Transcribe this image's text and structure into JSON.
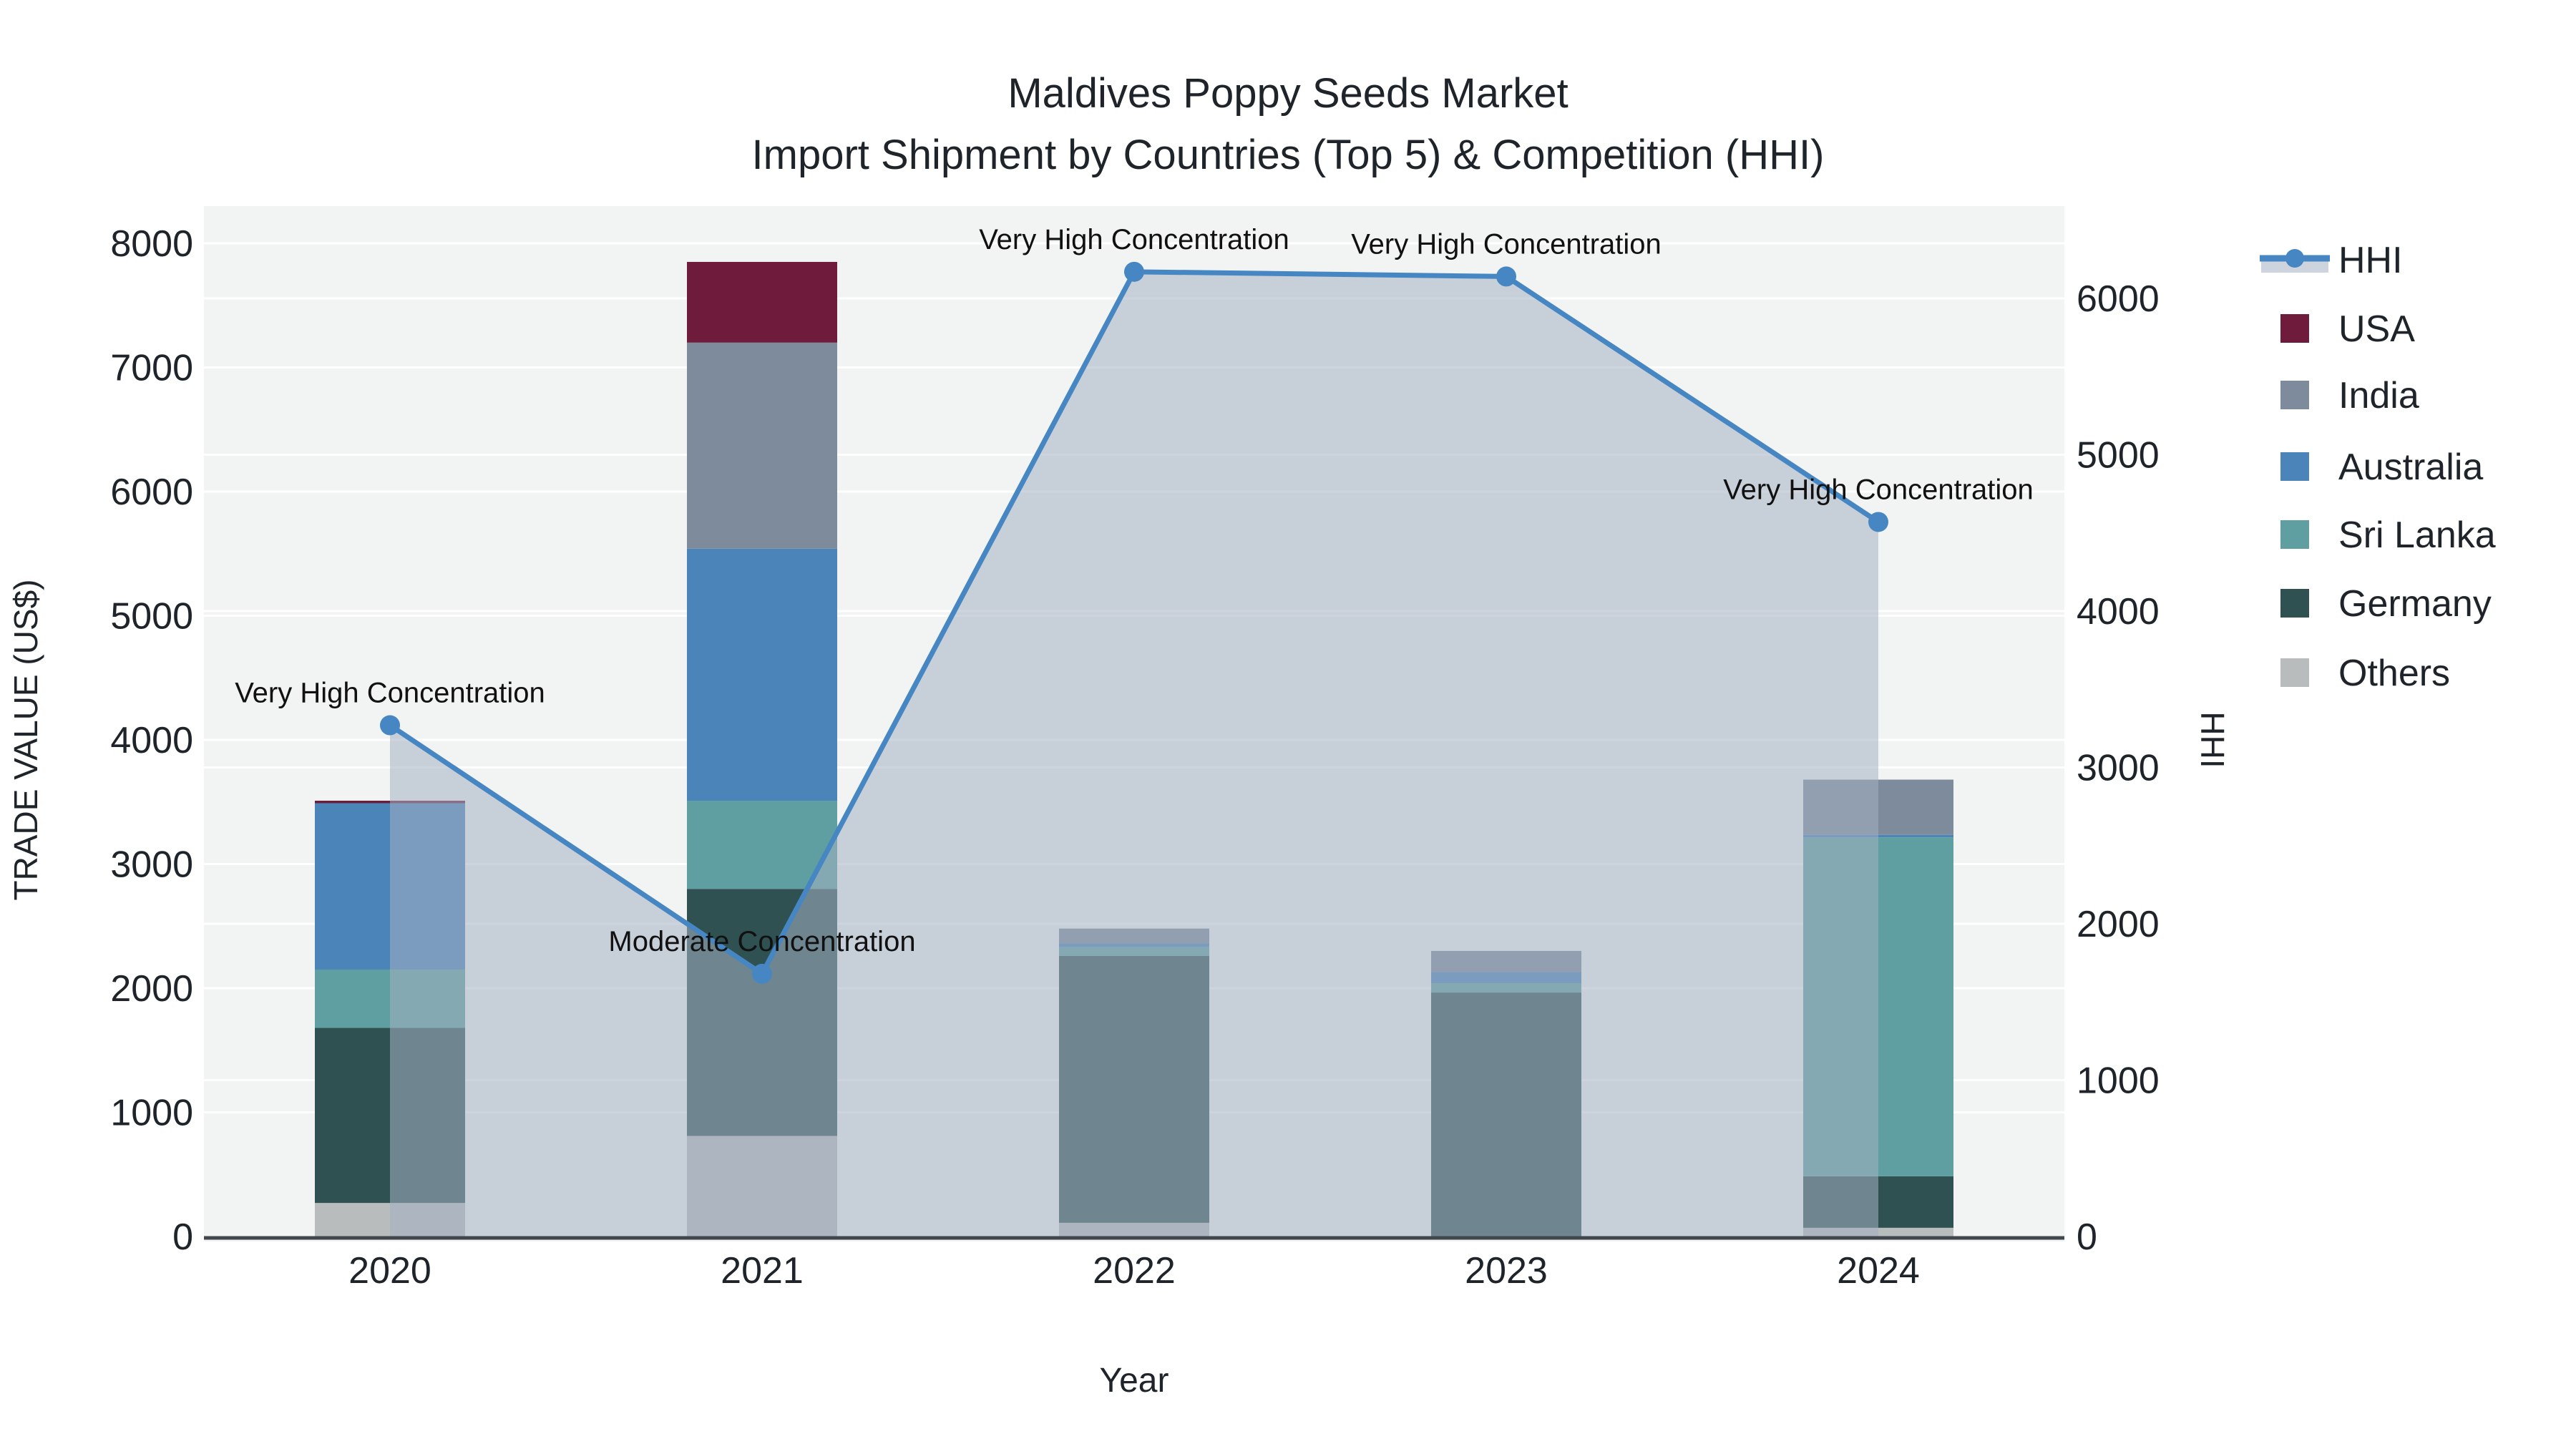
{
  "figure": {
    "title_line1": "Maldives Poppy Seeds Market",
    "title_line2": "Import Shipment by Countries (Top 5) & Competition (HHI)"
  },
  "chart_data": {
    "type": "bar+line",
    "title": "Maldives Poppy Seeds Market Import Shipment by Countries (Top 5) & Competition (HHI)",
    "categories": [
      "2020",
      "2021",
      "2022",
      "2023",
      "2024"
    ],
    "stack_order_bottom_to_top": [
      "Others",
      "Germany",
      "Sri Lanka",
      "Australia",
      "India",
      "USA"
    ],
    "bar_series": [
      {
        "name": "USA",
        "color": "#6e1b3c",
        "values": [
          20,
          650,
          0,
          0,
          0
        ]
      },
      {
        "name": "India",
        "color": "#7d8b9c",
        "values": [
          0,
          1660,
          120,
          170,
          445
        ]
      },
      {
        "name": "Australia",
        "color": "#4a84b8",
        "values": [
          1340,
          2030,
          30,
          90,
          20
        ]
      },
      {
        "name": "Sri Lanka",
        "color": "#5f9fa1",
        "values": [
          470,
          710,
          70,
          75,
          2730
        ]
      },
      {
        "name": "Germany",
        "color": "#2f5151",
        "values": [
          1410,
          1990,
          2150,
          1965,
          415
        ]
      },
      {
        "name": "Others",
        "color": "#b9bcbc",
        "values": [
          270,
          810,
          110,
          0,
          70
        ]
      }
    ],
    "line_series": {
      "name": "HHI",
      "color": "#4687c3",
      "fill_color": "rgba(164,176,194,0.55)",
      "values": [
        3270,
        1680,
        6170,
        6140,
        4570
      ]
    },
    "annotations": [
      {
        "category": "2020",
        "text": "Very High Concentration"
      },
      {
        "category": "2021",
        "text": "Moderate Concentration"
      },
      {
        "category": "2022",
        "text": "Very High Concentration"
      },
      {
        "category": "2023",
        "text": "Very High Concentration"
      },
      {
        "category": "2024",
        "text": "Very High Concentration"
      }
    ],
    "x_axis": {
      "title": "Year",
      "tick_labels": [
        "2020",
        "2021",
        "2022",
        "2023",
        "2024"
      ]
    },
    "left_axis": {
      "title": "TRADE VALUE (US$)",
      "min": 0,
      "max": 8000,
      "tick_step": 1000,
      "tick_labels": [
        "0",
        "1000",
        "2000",
        "3000",
        "4000",
        "5000",
        "6000",
        "7000",
        "8000"
      ]
    },
    "right_axis": {
      "title": "HHI",
      "min": 0,
      "max": 6000,
      "tick_step": 1000,
      "tick_labels": [
        "0",
        "1000",
        "2000",
        "3000",
        "4000",
        "5000",
        "6000"
      ]
    },
    "legend": {
      "items": [
        {
          "label": "HHI",
          "type": "line",
          "color": "#4687c3"
        },
        {
          "label": "USA",
          "type": "bar",
          "color": "#6e1b3c"
        },
        {
          "label": "India",
          "type": "bar",
          "color": "#7d8b9c"
        },
        {
          "label": "Australia",
          "type": "bar",
          "color": "#4a84b8"
        },
        {
          "label": "Sri Lanka",
          "type": "bar",
          "color": "#5f9fa1"
        },
        {
          "label": "Germany",
          "type": "bar",
          "color": "#2f5151"
        },
        {
          "label": "Others",
          "type": "bar",
          "color": "#b9bcbc"
        }
      ]
    },
    "layout_hints": {
      "plot_background": "#f2f3f3",
      "grid_color": "#ffffff",
      "axis_line_color": "#41474d",
      "text_color": "#1e2429",
      "legend_position": "right",
      "grid": "on"
    }
  }
}
